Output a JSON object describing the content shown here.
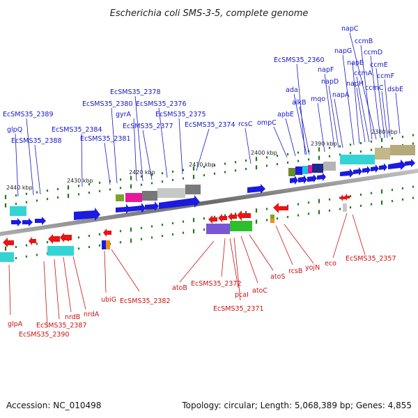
{
  "title": "Escherichia coli SMS-3-5, complete genome",
  "footer": {
    "accession": "Accession: NC_010498",
    "summary": "Topology: circular; Length: 5,068,389 bp; Genes: 4,855"
  },
  "axis_labels": [
    "2440 kbp",
    "2430 kbp",
    "2420 kbp",
    "2410 kbp",
    "2400 kbp",
    "2390 kbp",
    "2380 kbp"
  ],
  "top_labels": [
    "glpQ",
    "EcSMS35_2389",
    "EcSMS35_2388",
    "EcSMS35_2384",
    "EcSMS35_2381",
    "EcSMS35_2380",
    "gyrA",
    "EcSMS35_2378",
    "EcSMS35_2377",
    "EcSMS35_2376",
    "EcSMS35_2375",
    "EcSMS35_2374",
    "rcsC",
    "ompC",
    "apbE",
    "EcSMS35_2360",
    "ada",
    "alkB",
    "mqo",
    "napF",
    "napD",
    "napA",
    "napG",
    "napH",
    "napB",
    "ccmA",
    "ccmB",
    "napC",
    "ccmD",
    "ccmE",
    "ccmC",
    "ccmF",
    "dsbE"
  ],
  "bottom_labels": [
    "glpA",
    "EcSMS35_2390",
    "EcSMS35_2387",
    "nrdB",
    "nrdA",
    "ubiG",
    "EcSMS35_2382",
    "atoB",
    "EcSMS35_2372",
    "pcaI",
    "EcSMS35_2371",
    "atoC",
    "atoS",
    "rcsB",
    "yojN",
    "eco",
    "EcSMS35_2357"
  ],
  "colors": {
    "forward_strand": "#1a1ae0",
    "reverse_strand": "#e81515",
    "axis": "#808080",
    "tick": "#1f7a1f"
  }
}
